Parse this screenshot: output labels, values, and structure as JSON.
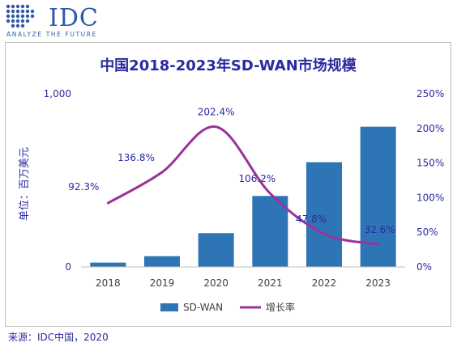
{
  "logo": {
    "name": "IDC",
    "tagline": "ANALYZE THE FUTURE"
  },
  "chart_data": {
    "type": "bar",
    "title": "中国2018-2023年SD-WAN市场规模",
    "ylabel": "单位：百万美元",
    "categories": [
      "2018",
      "2019",
      "2020",
      "2021",
      "2022",
      "2023"
    ],
    "ylim": [
      0,
      1000
    ],
    "y_ticks": [
      "1,000",
      "0"
    ],
    "y2lim": [
      0,
      250
    ],
    "y2_ticks": [
      "250%",
      "200%",
      "150%",
      "100%",
      "50%",
      "0%"
    ],
    "series": [
      {
        "name": "SD-WAN",
        "kind": "bar",
        "values": [
          25,
          62,
          195,
          410,
          605,
          810
        ],
        "color": "#2e75b6"
      },
      {
        "name": "增长率",
        "kind": "line",
        "axis": "right",
        "values": [
          92.3,
          136.8,
          202.4,
          106.2,
          47.8,
          32.6
        ],
        "labels": [
          "92.3%",
          "136.8%",
          "202.4%",
          "106.2%",
          "47.8%",
          "32.6%"
        ],
        "color": "#993399"
      }
    ],
    "legend": "bottom",
    "grid": false
  },
  "source": "来源：IDC中国，2020"
}
